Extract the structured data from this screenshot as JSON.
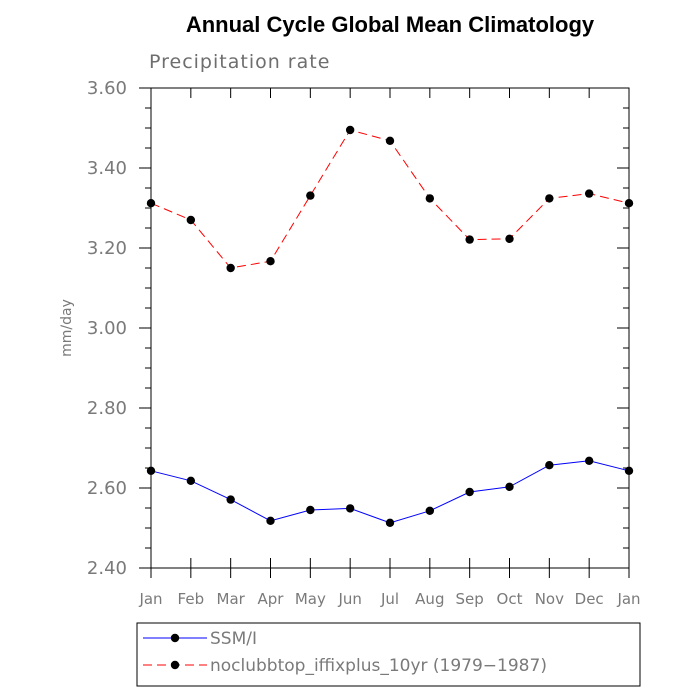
{
  "chart_data": {
    "type": "line",
    "title": "Annual Cycle Global Mean Climatology",
    "subtitle": "Precipitation rate",
    "xlabel": "",
    "ylabel": "mm/day",
    "categories": [
      "Jan",
      "Feb",
      "Mar",
      "Apr",
      "May",
      "Jun",
      "Jul",
      "Aug",
      "Sep",
      "Oct",
      "Nov",
      "Dec",
      "Jan"
    ],
    "ylim": [
      2.4,
      3.6
    ],
    "yticks": [
      "2.40",
      "2.60",
      "2.80",
      "3.00",
      "3.20",
      "3.40",
      "3.60"
    ],
    "grid": false,
    "legend_position": "bottom",
    "series": [
      {
        "name": "SSM/I",
        "color": "#0000ff",
        "line_style": "solid",
        "marker": "filled-circle",
        "values": [
          2.643,
          2.618,
          2.571,
          2.518,
          2.545,
          2.549,
          2.513,
          2.543,
          2.59,
          2.603,
          2.657,
          2.668,
          2.643
        ]
      },
      {
        "name": "noclubbtop_iffixplus_10yr (1979−1987)",
        "color": "#ff0000",
        "line_style": "dashed",
        "marker": "filled-circle",
        "values": [
          3.312,
          3.27,
          3.15,
          3.167,
          3.331,
          3.495,
          3.468,
          3.324,
          3.221,
          3.223,
          3.324,
          3.336,
          3.312
        ]
      }
    ]
  }
}
